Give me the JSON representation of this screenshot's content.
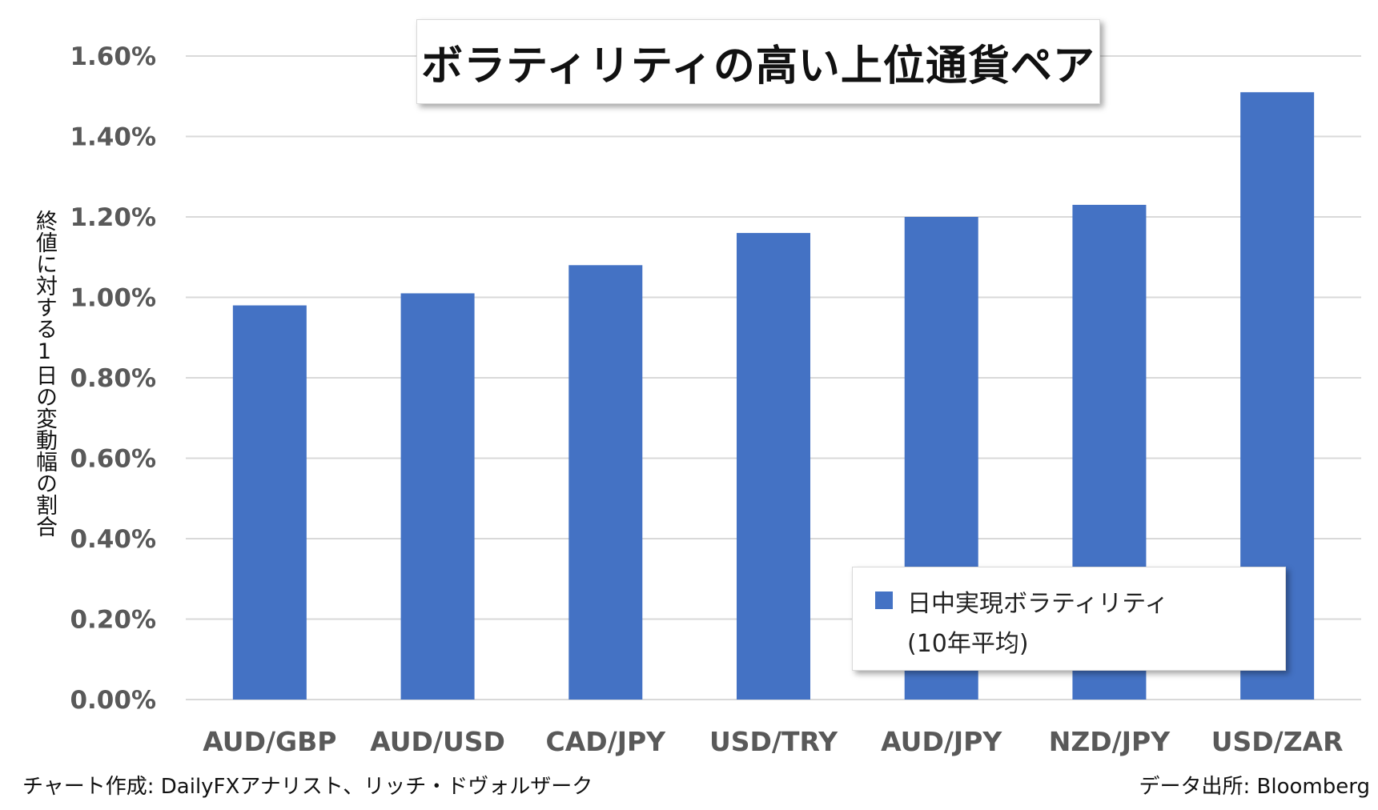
{
  "chart_data": {
    "type": "bar",
    "title": "ボラティリティの高い上位通貨ペア",
    "ylabel": "終値に対する1日の変動幅の割合",
    "xlabel": "",
    "categories": [
      "AUD/GBP",
      "AUD/USD",
      "CAD/JPY",
      "USD/TRY",
      "AUD/JPY",
      "NZD/JPY",
      "USD/ZAR"
    ],
    "series": [
      {
        "name": "日中実現ボラティリティ(10年平均)",
        "values": [
          0.98,
          1.01,
          1.08,
          1.16,
          1.2,
          1.23,
          1.51
        ]
      }
    ],
    "ylim": [
      0,
      1.6
    ],
    "yticks": [
      0,
      0.2,
      0.4,
      0.6,
      0.8,
      1.0,
      1.2,
      1.4,
      1.6
    ],
    "ytick_labels": [
      "0.00%",
      "0.20%",
      "0.40%",
      "0.60%",
      "0.80%",
      "1.00%",
      "1.20%",
      "1.40%",
      "1.60%"
    ],
    "grid": true,
    "legend_position": "bottom-right"
  },
  "legend": {
    "line1": "日中実現ボラティリティ",
    "line2": "(10年平均)"
  },
  "footer": {
    "left": "チャート作成: DailyFXアナリスト、リッチ・ドヴォルザーク",
    "right": "データ出所: Bloomberg"
  },
  "colors": {
    "bar": "#4472c4",
    "grid": "#d9d9d9",
    "tick_text": "#595959"
  }
}
